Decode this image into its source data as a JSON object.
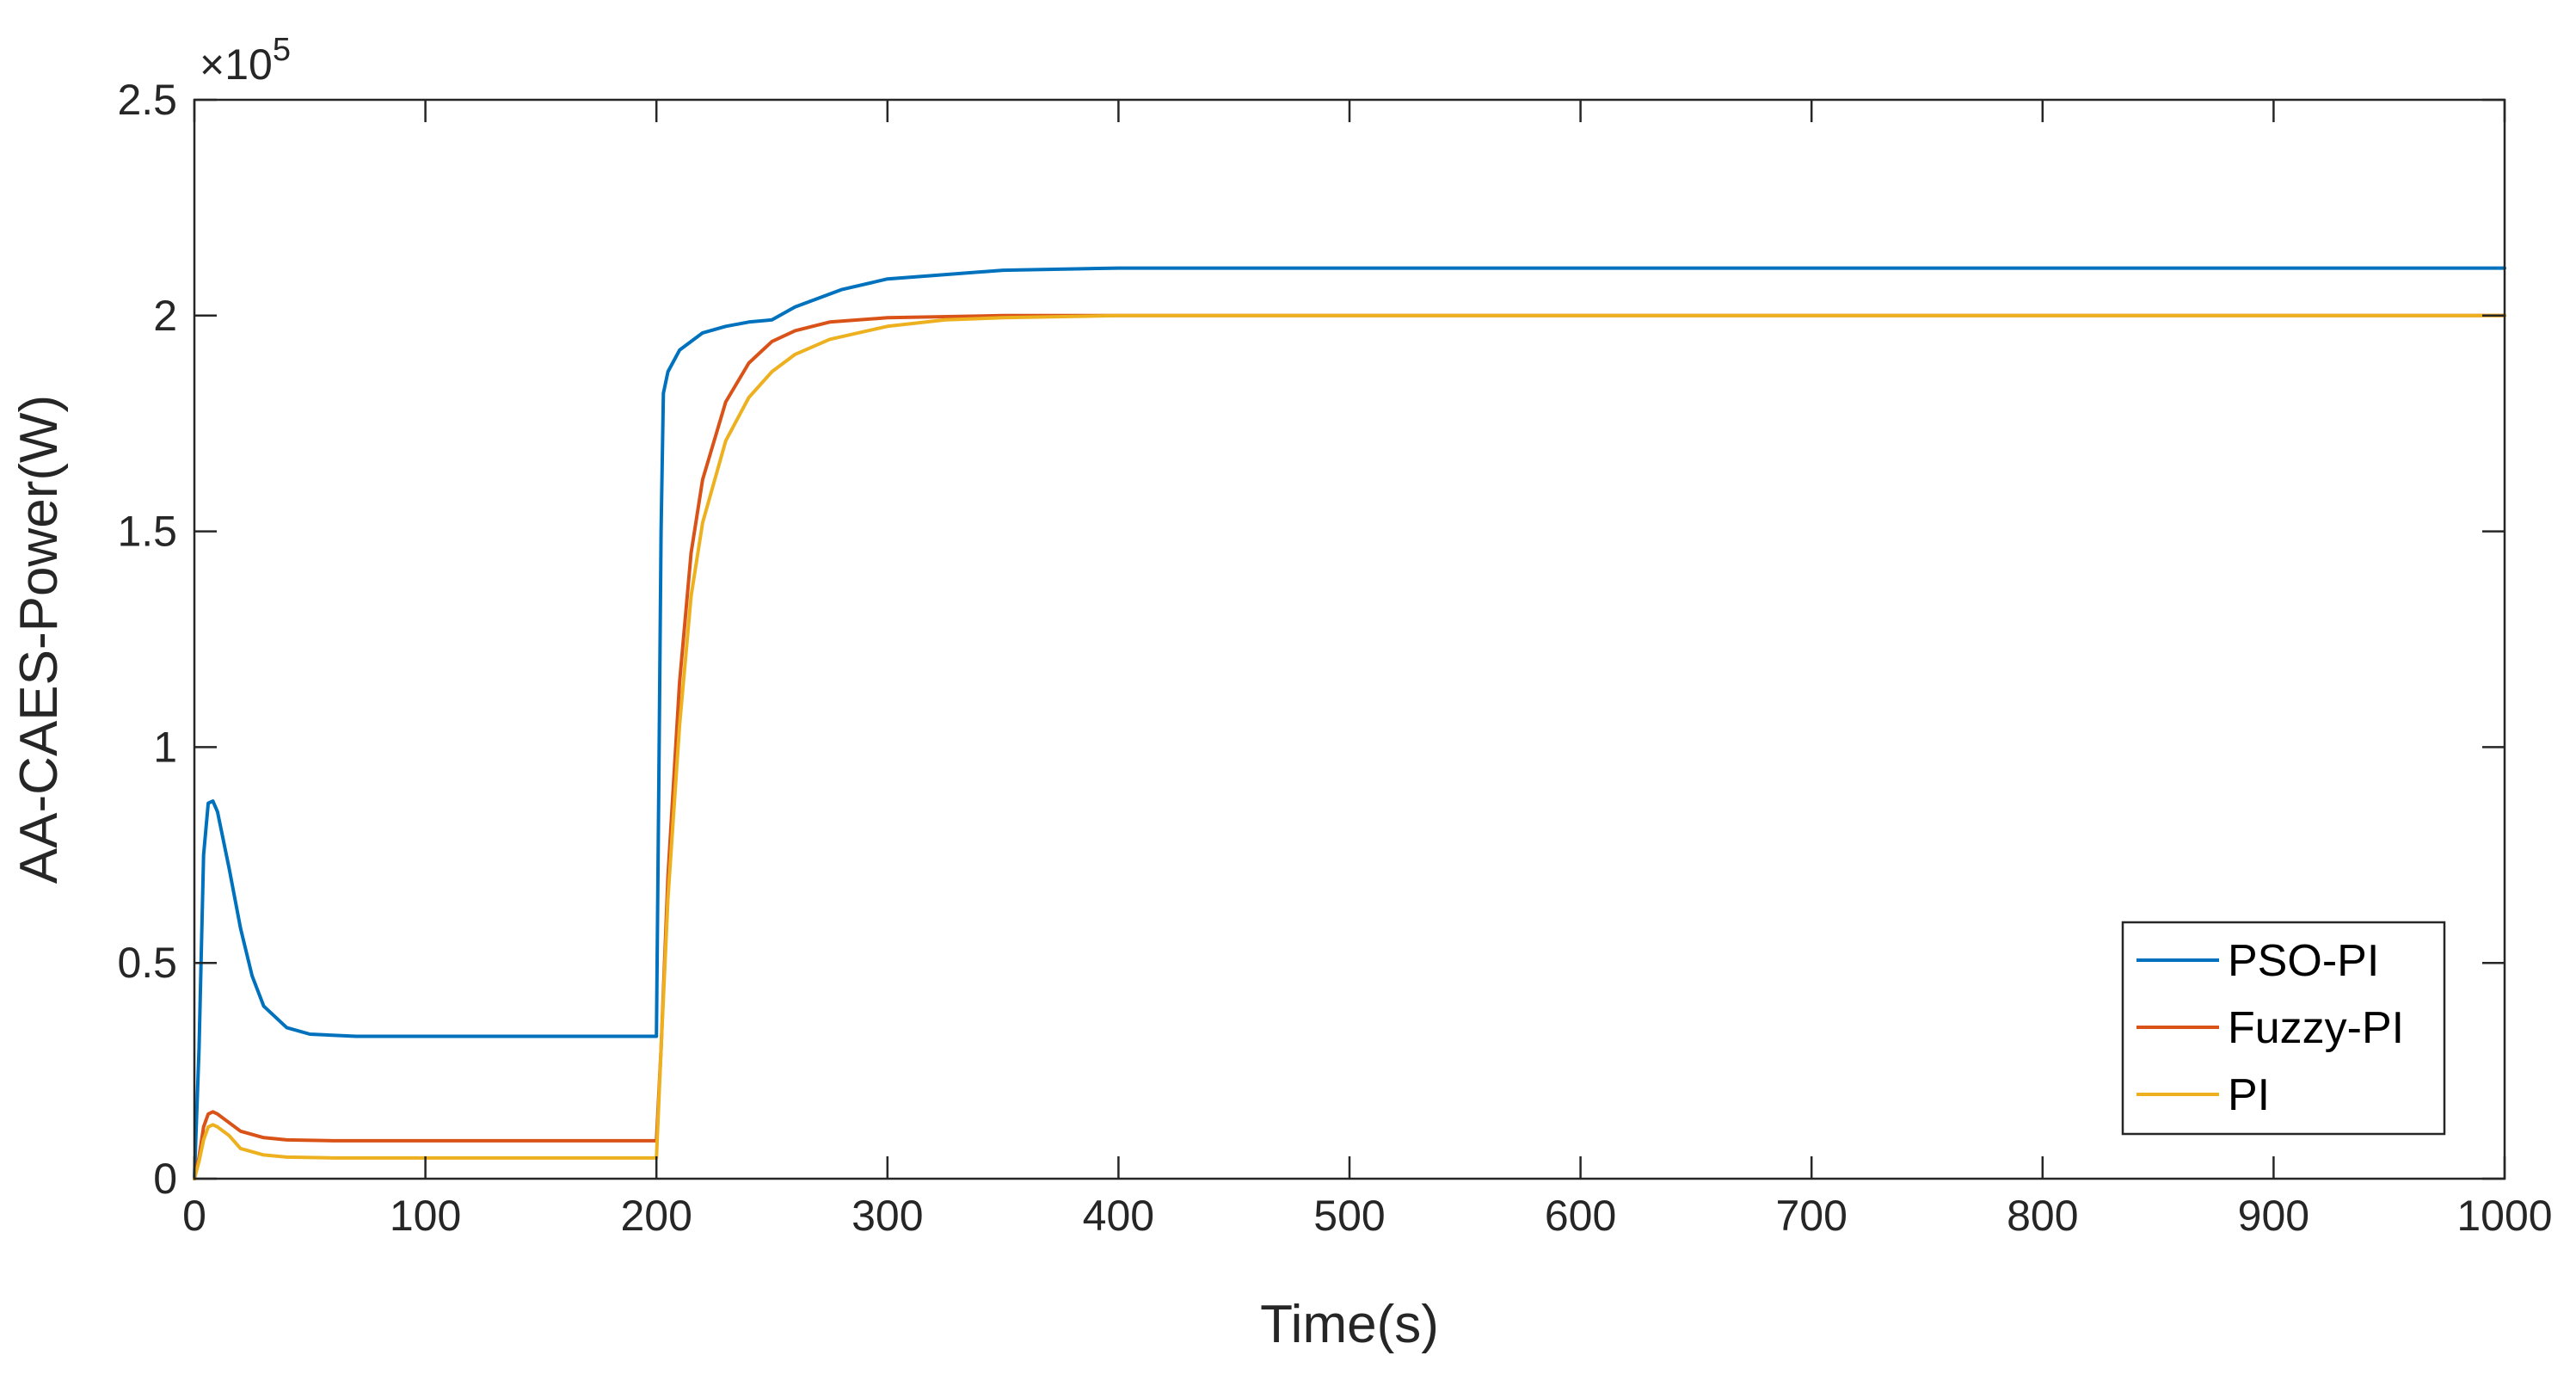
{
  "chart_data": {
    "type": "line",
    "title": "",
    "xlabel": "Time(s)",
    "ylabel": "AA-CAES-Power(W)",
    "y_exponent_label": "×10",
    "y_exponent_power": "5",
    "xlim": [
      0,
      1000
    ],
    "ylim": [
      0,
      2.5
    ],
    "xticks": [
      0,
      100,
      200,
      300,
      400,
      500,
      600,
      700,
      800,
      900,
      1000
    ],
    "yticks": [
      0,
      0.5,
      1,
      1.5,
      2,
      2.5
    ],
    "xtick_labels": [
      "0",
      "100",
      "200",
      "300",
      "400",
      "500",
      "600",
      "700",
      "800",
      "900",
      "1000"
    ],
    "ytick_labels": [
      "0",
      "0.5",
      "1",
      "1.5",
      "2",
      "2.5"
    ],
    "grid": false,
    "legend_position": "bottom-right",
    "series": [
      {
        "name": "PSO-PI",
        "color": "#0072BD",
        "points": [
          [
            0,
            0
          ],
          [
            2,
            0.3
          ],
          [
            4,
            0.75
          ],
          [
            6,
            0.87
          ],
          [
            8,
            0.875
          ],
          [
            10,
            0.85
          ],
          [
            15,
            0.72
          ],
          [
            20,
            0.58
          ],
          [
            25,
            0.47
          ],
          [
            30,
            0.4
          ],
          [
            40,
            0.35
          ],
          [
            50,
            0.335
          ],
          [
            70,
            0.33
          ],
          [
            100,
            0.33
          ],
          [
            150,
            0.33
          ],
          [
            198,
            0.33
          ],
          [
            200,
            0.33
          ],
          [
            201,
            0.9
          ],
          [
            202,
            1.5
          ],
          [
            203,
            1.82
          ],
          [
            205,
            1.87
          ],
          [
            210,
            1.92
          ],
          [
            220,
            1.96
          ],
          [
            230,
            1.975
          ],
          [
            240,
            1.985
          ],
          [
            250,
            1.99
          ],
          [
            260,
            2.02
          ],
          [
            280,
            2.06
          ],
          [
            300,
            2.085
          ],
          [
            350,
            2.105
          ],
          [
            400,
            2.11
          ],
          [
            500,
            2.11
          ],
          [
            600,
            2.11
          ],
          [
            800,
            2.11
          ],
          [
            1000,
            2.11
          ]
        ]
      },
      {
        "name": "Fuzzy-PI",
        "color": "#D95319",
        "points": [
          [
            0,
            0
          ],
          [
            2,
            0.05
          ],
          [
            4,
            0.12
          ],
          [
            6,
            0.15
          ],
          [
            8,
            0.155
          ],
          [
            10,
            0.15
          ],
          [
            15,
            0.13
          ],
          [
            20,
            0.11
          ],
          [
            30,
            0.095
          ],
          [
            40,
            0.09
          ],
          [
            60,
            0.088
          ],
          [
            100,
            0.088
          ],
          [
            150,
            0.088
          ],
          [
            200,
            0.088
          ],
          [
            202,
            0.3
          ],
          [
            205,
            0.7
          ],
          [
            210,
            1.15
          ],
          [
            215,
            1.45
          ],
          [
            220,
            1.62
          ],
          [
            230,
            1.8
          ],
          [
            240,
            1.89
          ],
          [
            250,
            1.94
          ],
          [
            260,
            1.965
          ],
          [
            275,
            1.985
          ],
          [
            300,
            1.995
          ],
          [
            350,
            2.0
          ],
          [
            400,
            2.0
          ],
          [
            600,
            2.0
          ],
          [
            800,
            2.0
          ],
          [
            1000,
            2.0
          ]
        ]
      },
      {
        "name": "PI",
        "color": "#EDB120",
        "points": [
          [
            0,
            0
          ],
          [
            2,
            0.04
          ],
          [
            4,
            0.09
          ],
          [
            6,
            0.12
          ],
          [
            8,
            0.125
          ],
          [
            10,
            0.12
          ],
          [
            15,
            0.1
          ],
          [
            20,
            0.07
          ],
          [
            30,
            0.055
          ],
          [
            40,
            0.05
          ],
          [
            60,
            0.048
          ],
          [
            100,
            0.048
          ],
          [
            150,
            0.048
          ],
          [
            200,
            0.048
          ],
          [
            202,
            0.3
          ],
          [
            205,
            0.65
          ],
          [
            210,
            1.05
          ],
          [
            215,
            1.35
          ],
          [
            220,
            1.52
          ],
          [
            230,
            1.71
          ],
          [
            240,
            1.81
          ],
          [
            250,
            1.87
          ],
          [
            260,
            1.91
          ],
          [
            275,
            1.945
          ],
          [
            300,
            1.975
          ],
          [
            325,
            1.99
          ],
          [
            350,
            1.995
          ],
          [
            400,
            2.0
          ],
          [
            600,
            2.0
          ],
          [
            800,
            2.0
          ],
          [
            1000,
            2.0
          ]
        ]
      }
    ]
  }
}
